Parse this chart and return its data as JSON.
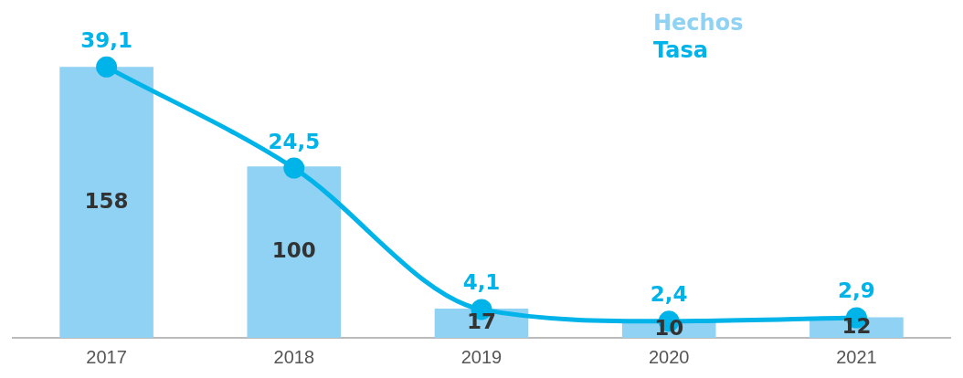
{
  "chart_data": {
    "type": "bar",
    "categories": [
      "2017",
      "2018",
      "2019",
      "2020",
      "2021"
    ],
    "series": [
      {
        "name": "Hechos",
        "color": "#8fd2f4",
        "values": [
          158,
          100,
          17,
          10,
          12
        ]
      },
      {
        "name": "Tasa",
        "type": "line",
        "axis": "y2",
        "color": "#00b3e8",
        "values": [
          39.1,
          24.5,
          4.1,
          2.4,
          2.9
        ],
        "value_labels": [
          "39,1",
          "24,5",
          "4,1",
          "2,4",
          "2,9"
        ]
      }
    ],
    "data_labels": true,
    "legend": "top right",
    "grid": false,
    "tick_labels": "x",
    "marker": "circle",
    "line_style": "solid"
  }
}
